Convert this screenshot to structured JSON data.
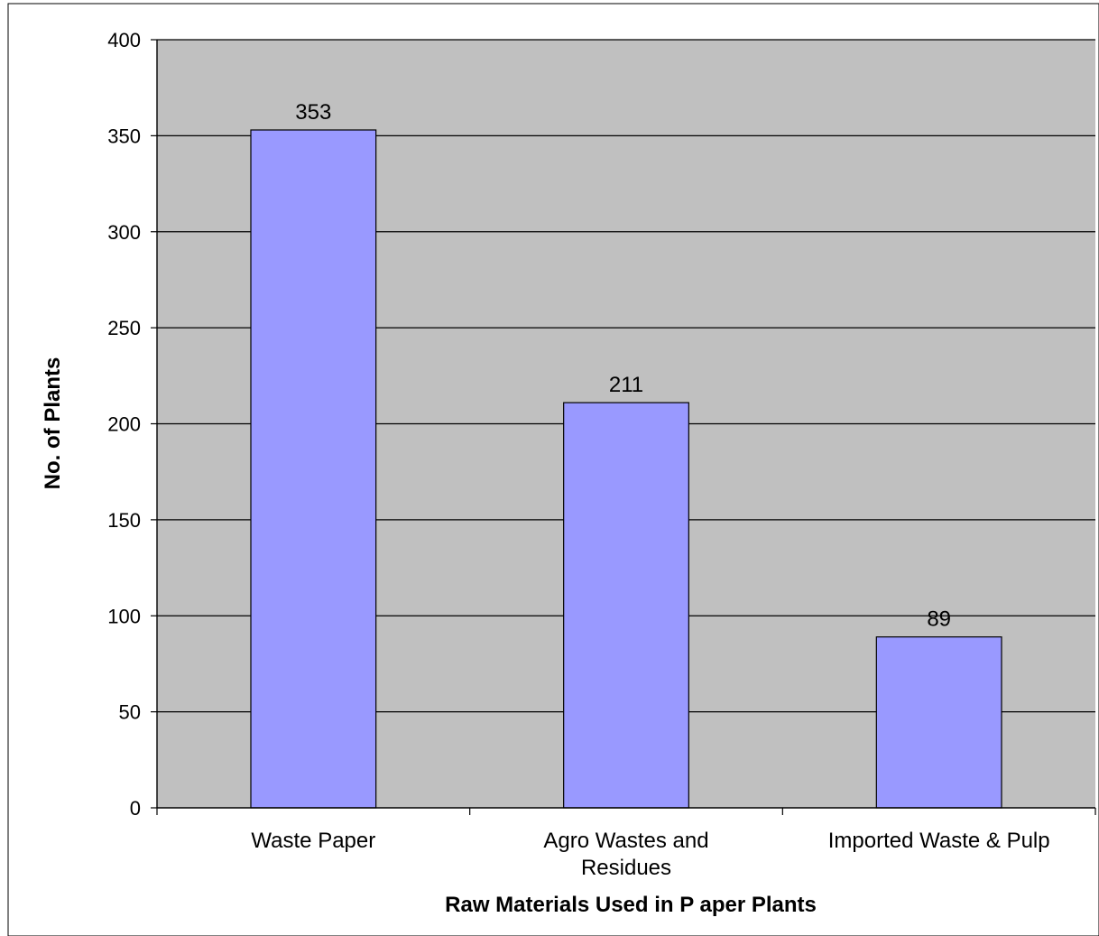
{
  "chart_data": {
    "type": "bar",
    "title": "",
    "xlabel": "Raw Materials Used in P aper Plants",
    "ylabel": "No. of Plants",
    "categories": [
      [
        "Waste Paper"
      ],
      [
        "Agro Wastes and",
        "Residues"
      ],
      [
        "Imported Waste & Pulp"
      ]
    ],
    "values": [
      353,
      211,
      89
    ],
    "data_labels": [
      "353",
      "211",
      "89"
    ],
    "ylim": [
      0,
      400
    ],
    "yticks": [
      0,
      50,
      100,
      150,
      200,
      250,
      300,
      350,
      400
    ],
    "grid": true,
    "legend": "none",
    "colors": {
      "plot_bg": "#c0c0c0",
      "bar_fill": "#9999ff",
      "bar_stroke": "#000000",
      "grid": "#000000"
    }
  }
}
